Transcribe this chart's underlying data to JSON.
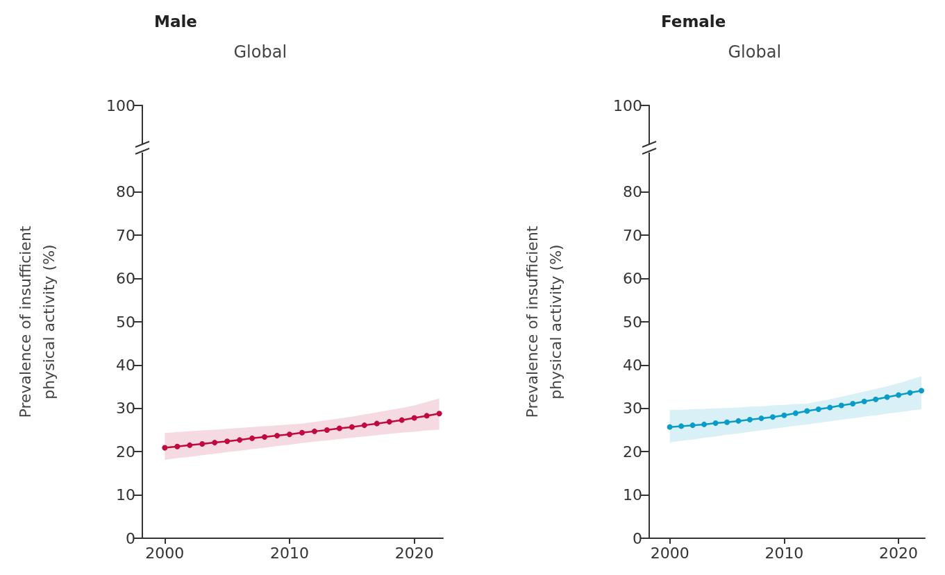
{
  "chart_data": [
    {
      "type": "line",
      "title": "Male",
      "subtitle": "Global",
      "ylabel": "Prevalence of insufficient\nphysical activity (%)",
      "x": [
        2000,
        2001,
        2002,
        2003,
        2004,
        2005,
        2006,
        2007,
        2008,
        2009,
        2010,
        2011,
        2012,
        2013,
        2014,
        2015,
        2016,
        2017,
        2018,
        2019,
        2020,
        2021,
        2022
      ],
      "series": [
        {
          "color": "#c0093f",
          "values": [
            20.9,
            21.2,
            21.5,
            21.8,
            22.1,
            22.4,
            22.7,
            23.1,
            23.4,
            23.7,
            24.0,
            24.4,
            24.7,
            25.0,
            25.4,
            25.7,
            26.1,
            26.5,
            26.9,
            27.3,
            27.8,
            28.3,
            28.8
          ],
          "lower": [
            18.1,
            18.5,
            18.8,
            19.2,
            19.5,
            19.9,
            20.2,
            20.6,
            20.9,
            21.3,
            21.6,
            22.0,
            22.3,
            22.6,
            22.9,
            23.2,
            23.5,
            23.8,
            24.1,
            24.4,
            24.6,
            24.9,
            25.1
          ],
          "upper": [
            24.3,
            24.5,
            24.7,
            24.9,
            25.1,
            25.3,
            25.5,
            25.7,
            25.9,
            26.1,
            26.3,
            26.5,
            26.9,
            27.3,
            27.7,
            28.1,
            28.6,
            29.1,
            29.6,
            30.1,
            30.7,
            31.5,
            32.3
          ]
        }
      ],
      "xlim": [
        1998.2,
        2022.3
      ],
      "xticks": [
        2000,
        2010,
        2020
      ],
      "ylim": [
        0,
        100
      ],
      "yticks": [
        0,
        10,
        20,
        30,
        40,
        50,
        60,
        70,
        80,
        100
      ],
      "grid": false,
      "marker": "circle",
      "line_style": "solid"
    },
    {
      "type": "line",
      "title": "Female",
      "subtitle": "Global",
      "ylabel": "Prevalence of insufficient\nphysical activity (%)",
      "x": [
        2000,
        2001,
        2002,
        2003,
        2004,
        2005,
        2006,
        2007,
        2008,
        2009,
        2010,
        2011,
        2012,
        2013,
        2014,
        2015,
        2016,
        2017,
        2018,
        2019,
        2020,
        2021,
        2022
      ],
      "series": [
        {
          "color": "#0a9cc8",
          "values": [
            25.7,
            25.9,
            26.1,
            26.3,
            26.6,
            26.8,
            27.1,
            27.4,
            27.7,
            28.0,
            28.4,
            28.9,
            29.4,
            29.8,
            30.2,
            30.7,
            31.1,
            31.6,
            32.1,
            32.6,
            33.1,
            33.6,
            34.1
          ],
          "lower": [
            22.1,
            22.5,
            22.8,
            23.2,
            23.5,
            23.9,
            24.2,
            24.6,
            24.9,
            25.3,
            25.6,
            26.0,
            26.3,
            26.7,
            27.0,
            27.4,
            27.7,
            28.1,
            28.4,
            28.8,
            29.1,
            29.5,
            29.8
          ],
          "upper": [
            29.6,
            29.7,
            29.8,
            29.9,
            30.0,
            30.1,
            30.2,
            30.4,
            30.5,
            30.7,
            30.8,
            31.0,
            31.1,
            31.6,
            32.1,
            32.7,
            33.3,
            33.9,
            34.5,
            35.1,
            35.8,
            36.6,
            37.4
          ]
        }
      ],
      "xlim": [
        1998.2,
        2022.3
      ],
      "xticks": [
        2000,
        2010,
        2020
      ],
      "ylim": [
        0,
        100
      ],
      "yticks": [
        0,
        10,
        20,
        30,
        40,
        50,
        60,
        70,
        80,
        100
      ],
      "grid": false,
      "marker": "circle",
      "line_style": "solid"
    }
  ]
}
